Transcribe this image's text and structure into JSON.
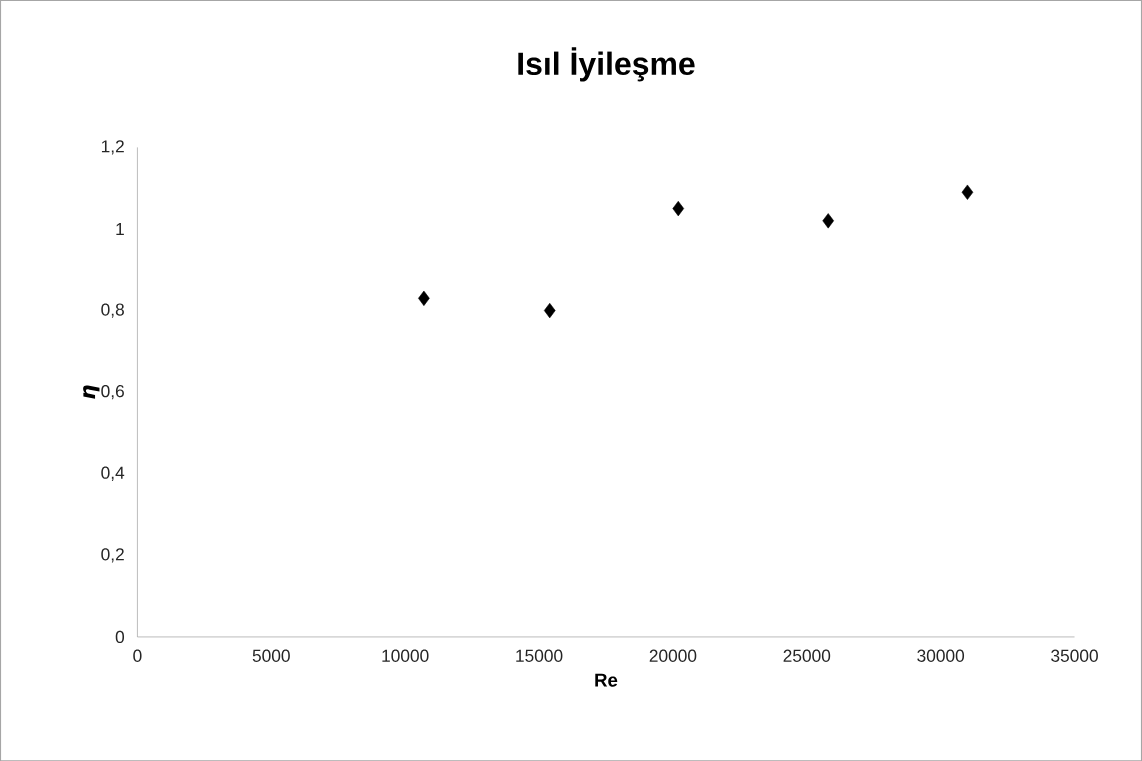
{
  "chart_data": {
    "type": "scatter",
    "title": "Isıl İyileşme",
    "xlabel": "Re",
    "ylabel": "η",
    "x": [
      10700,
      15400,
      20200,
      25800,
      31000
    ],
    "series": [
      {
        "color": "#000000",
        "values": [
          0.83,
          0.8,
          1.05,
          1.02,
          1.09
        ]
      }
    ],
    "marker": "diamond",
    "xlim": [
      0,
      35000
    ],
    "xticks": [
      0,
      5000,
      10000,
      15000,
      20000,
      25000,
      30000,
      35000
    ],
    "ylim": [
      0,
      1.2
    ],
    "yticks": [
      0,
      {
        "value": 0.2,
        "label": "0,2"
      },
      {
        "value": 0.4,
        "label": "0,4"
      },
      {
        "value": 0.6,
        "label": "0,6"
      },
      {
        "value": 0.8,
        "label": "0,8"
      },
      1,
      {
        "value": 1.2,
        "label": "1,2"
      }
    ],
    "grid": false,
    "legend": false
  }
}
